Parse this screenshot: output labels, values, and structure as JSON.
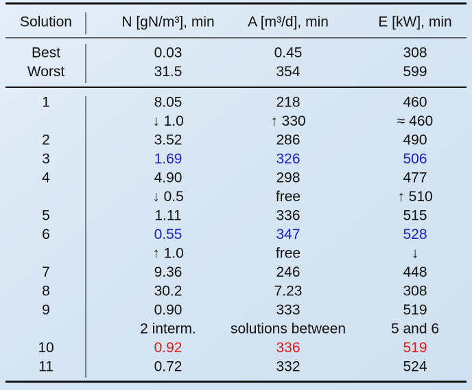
{
  "table": {
    "header": [
      "Solution",
      "N [gN/m³], min",
      "A [m³/d], min",
      "E [kW], min"
    ],
    "reference_rows": [
      {
        "cells": [
          "Best",
          "0.03",
          "0.45",
          "308"
        ]
      },
      {
        "cells": [
          "Worst",
          "31.5",
          "354",
          "599"
        ]
      }
    ],
    "rows": [
      {
        "cells": [
          "1",
          "8.05",
          "218",
          "460"
        ]
      },
      {
        "cells": [
          null,
          "↓ 1.0",
          "↑ 330",
          "≈ 460"
        ]
      },
      {
        "cells": [
          "2",
          "3.52",
          "286",
          "490"
        ]
      },
      {
        "cells": [
          "3",
          "1.69",
          "326",
          "506"
        ],
        "color": "#1c1cc8"
      },
      {
        "cells": [
          "4",
          "4.90",
          "298",
          "477"
        ]
      },
      {
        "cells": [
          null,
          "↓ 0.5",
          "free",
          "↑ 510"
        ]
      },
      {
        "cells": [
          "5",
          "1.11",
          "336",
          "515"
        ]
      },
      {
        "cells": [
          "6",
          "0.55",
          "347",
          "528"
        ],
        "color": "#1c1cc8"
      },
      {
        "cells": [
          null,
          "↑ 1.0",
          "free",
          "↓"
        ]
      },
      {
        "cells": [
          "7",
          "9.36",
          "246",
          "448"
        ]
      },
      {
        "cells": [
          "8",
          "30.2",
          "7.23",
          "308"
        ]
      },
      {
        "cells": [
          "9",
          "0.90",
          "333",
          "519"
        ]
      },
      {
        "cells": [
          null,
          "2 interm.",
          "solutions between",
          "5 and 6"
        ]
      },
      {
        "cells": [
          "10",
          "0.92",
          "336",
          "519"
        ],
        "color": "#e01818"
      },
      {
        "cells": [
          "11",
          "0.72",
          "332",
          "524"
        ]
      }
    ]
  }
}
